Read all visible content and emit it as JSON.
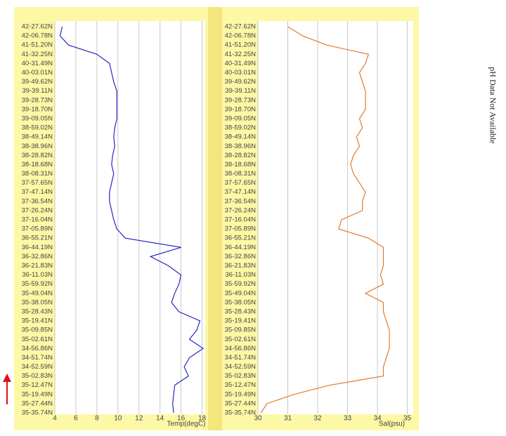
{
  "chart_data": [
    {
      "type": "line",
      "orientation": "horizontal",
      "xlabel": "Temp(degC)",
      "color": "#2626c4",
      "categories": [
        "42-27.62N",
        "42-06.78N",
        "41-51.20N",
        "41-32.25N",
        "40-31.49N",
        "40-03.01N",
        "39-49.62N",
        "39-39.11N",
        "39-28.73N",
        "39-18.70N",
        "39-09.05N",
        "38-59.02N",
        "38-49.14N",
        "38-38.96N",
        "38-28.82N",
        "38-18.68N",
        "38-08.31N",
        "37-57.65N",
        "37-47.14N",
        "37-36.54N",
        "37-26.24N",
        "37-16.04N",
        "37-05.89N",
        "36-55.21N",
        "36-44.19N",
        "36-32.86N",
        "36-21.83N",
        "36-11.03N",
        "35-59.92N",
        "35-49.04N",
        "35-38.05N",
        "35-28.43N",
        "35-19.41N",
        "35-09.85N",
        "35-02.61N",
        "34-56.86N",
        "34-51.74N",
        "34-52.59N",
        "35-02.83N",
        "35-12.47N",
        "35-19.49N",
        "35-27.44N",
        "35-35.74N"
      ],
      "values": [
        4.7,
        4.5,
        5.3,
        8.0,
        9.2,
        9.4,
        9.6,
        9.9,
        9.9,
        9.9,
        9.9,
        9.7,
        9.6,
        9.7,
        9.5,
        9.4,
        9.6,
        9.4,
        9.2,
        9.2,
        9.4,
        9.6,
        9.9,
        10.7,
        16.0,
        13.1,
        14.8,
        16.0,
        15.8,
        15.4,
        15.1,
        15.8,
        17.8,
        17.5,
        16.8,
        18.1,
        16.8,
        16.3,
        16.7,
        15.4,
        15.3,
        15.2,
        15.3
      ],
      "xlim": [
        4,
        18.3
      ],
      "xticks": [
        4,
        6,
        8,
        10,
        12,
        14,
        16,
        18
      ],
      "grid": true
    },
    {
      "type": "line",
      "orientation": "horizontal",
      "xlabel": "Sal(psu)",
      "color": "#e07a30",
      "categories": [
        "42-27.62N",
        "42-06.78N",
        "41-51.20N",
        "41-32.25N",
        "40-31.49N",
        "40-03.01N",
        "39-49.62N",
        "39-39.11N",
        "39-28.73N",
        "39-18.70N",
        "39-09.05N",
        "38-59.02N",
        "38-49.14N",
        "38-38.96N",
        "38-28.82N",
        "38-18.68N",
        "38-08.31N",
        "37-57.65N",
        "37-47.14N",
        "37-36.54N",
        "37-26.24N",
        "37-16.04N",
        "37-05.89N",
        "36-55.21N",
        "36-44.19N",
        "36-32.86N",
        "36-21.83N",
        "36-11.03N",
        "35-59.92N",
        "35-49.04N",
        "35-38.05N",
        "35-28.43N",
        "35-19.41N",
        "35-09.85N",
        "35-02.61N",
        "34-56.86N",
        "34-51.74N",
        "34-52.59N",
        "35-02.83N",
        "35-12.47N",
        "35-19.49N",
        "35-27.44N",
        "35-35.74N"
      ],
      "values": [
        31.0,
        31.5,
        32.3,
        33.7,
        33.6,
        33.4,
        33.5,
        33.6,
        33.6,
        33.6,
        33.4,
        33.5,
        33.3,
        33.4,
        33.2,
        33.1,
        33.2,
        33.4,
        33.6,
        33.5,
        33.5,
        32.8,
        32.7,
        33.7,
        34.2,
        34.2,
        34.2,
        34.1,
        34.2,
        33.6,
        34.2,
        34.2,
        34.3,
        34.4,
        34.4,
        34.4,
        34.3,
        34.2,
        34.2,
        32.4,
        31.2,
        30.3,
        30.1
      ],
      "xlim": [
        30,
        35.2
      ],
      "xticks": [
        30,
        31,
        32,
        33,
        34,
        35
      ],
      "grid": true
    }
  ],
  "side_note": "pH Data Not Available"
}
